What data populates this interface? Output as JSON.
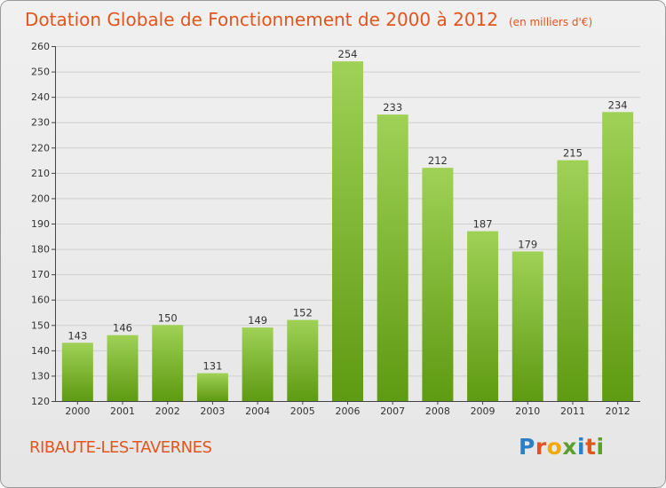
{
  "header": {
    "title": "Dotation Globale de Fonctionnement de 2000 à 2012",
    "subtitle": "(en milliers d'€)"
  },
  "footer": {
    "commune": "RIBAUTE-LES-TAVERNES",
    "logo_text": "Proxiti"
  },
  "colors": {
    "title": "#e2551e",
    "bar_top": "#9fd156",
    "bar_bottom": "#5e9a12",
    "grid": "#cfcfcf"
  },
  "chart_data": {
    "type": "bar",
    "title": "Dotation Globale de Fonctionnement de 2000 à 2012",
    "subtitle": "(en milliers d'€)",
    "categories": [
      "2000",
      "2001",
      "2002",
      "2003",
      "2004",
      "2005",
      "2006",
      "2007",
      "2008",
      "2009",
      "2010",
      "2011",
      "2012"
    ],
    "values": [
      143,
      146,
      150,
      131,
      149,
      152,
      254,
      233,
      212,
      187,
      179,
      215,
      234
    ],
    "data_labels": [
      "143",
      "146",
      "150",
      "131",
      "149",
      "152",
      "254",
      "233",
      "212",
      "187",
      "179",
      "215",
      "234"
    ],
    "ylim": [
      120,
      260
    ],
    "yticks": [
      120,
      130,
      140,
      150,
      160,
      170,
      180,
      190,
      200,
      210,
      220,
      230,
      240,
      250,
      260
    ],
    "xlabel": "",
    "ylabel": "",
    "grid": true
  }
}
